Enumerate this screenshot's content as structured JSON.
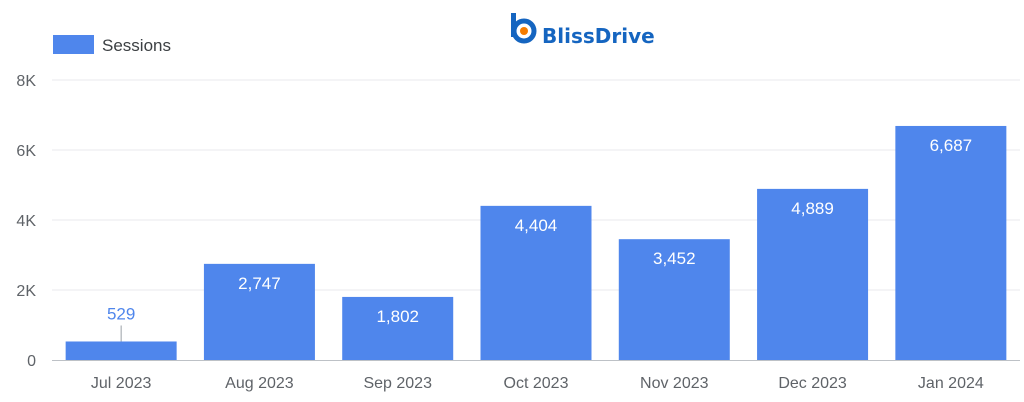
{
  "brand": {
    "name": "BlissDrive",
    "primary_color": "#1565c0",
    "accent_color": "#f57c00"
  },
  "chart_data": {
    "type": "bar",
    "legend": {
      "position": "top-left"
    },
    "categories": [
      "Jul 2023",
      "Aug 2023",
      "Sep 2023",
      "Oct 2023",
      "Nov 2023",
      "Dec 2023",
      "Jan 2024"
    ],
    "series": [
      {
        "name": "Sessions",
        "color": "#4f86ec",
        "values": [
          529,
          2747,
          1802,
          4404,
          3452,
          4889,
          6687
        ],
        "labels": [
          "529",
          "2,747",
          "1,802",
          "4,404",
          "3,452",
          "4,889",
          "6,687"
        ]
      }
    ],
    "ylim": [
      0,
      8000
    ],
    "yticks": [
      {
        "value": 0,
        "label": "0"
      },
      {
        "value": 2000,
        "label": "2K"
      },
      {
        "value": 4000,
        "label": "4K"
      },
      {
        "value": 6000,
        "label": "6K"
      },
      {
        "value": 8000,
        "label": "8K"
      }
    ],
    "grid": true,
    "label_inside_color": "#ffffff",
    "label_outside_color": "#4f86ec",
    "grid_color": "#e8eaed",
    "axis_color": "#bdc1c6"
  }
}
